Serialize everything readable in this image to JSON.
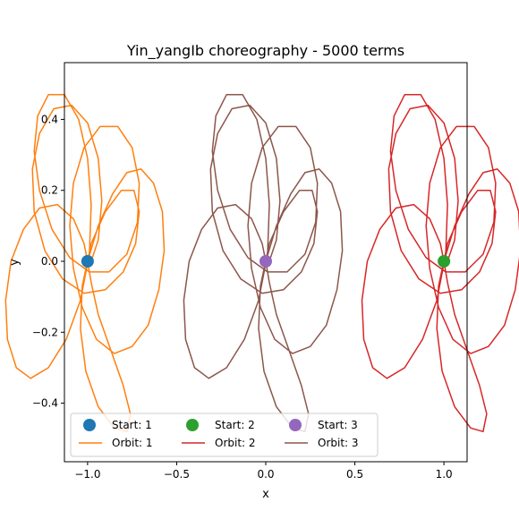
{
  "chart_data": {
    "type": "line",
    "title": "Yin_yangIb choreography - 5000 terms",
    "xlabel": "x",
    "ylabel": "y",
    "xlim": [
      -1.13,
      1.13
    ],
    "ylim": [
      -0.565,
      0.56
    ],
    "xticks": [
      -1.0,
      -0.5,
      0.0,
      0.5,
      1.0
    ],
    "xtick_labels": [
      "−1.0",
      "−0.5",
      "0.0",
      "0.5",
      "1.0"
    ],
    "yticks": [
      -0.4,
      -0.2,
      0.0,
      0.2,
      0.4
    ],
    "ytick_labels": [
      "−0.4",
      "−0.2",
      "0.0",
      "0.2",
      "0.4"
    ],
    "grid": false,
    "legend_placement": "lower-center",
    "legend_columns": 3,
    "starts": [
      {
        "name": "Start: 1",
        "x": -1.0,
        "y": 0.0,
        "color": "#1f77b4"
      },
      {
        "name": "Start: 2",
        "x": 1.0,
        "y": 0.0,
        "color": "#2ca02c"
      },
      {
        "name": "Start: 3",
        "x": 0.0,
        "y": 0.0,
        "color": "#9467bd"
      }
    ],
    "orbits": [
      {
        "name": "Orbit: 1",
        "color": "#ff7f0e",
        "offset_x": -1.0
      },
      {
        "name": "Orbit: 2",
        "color": "#d62728",
        "offset_x": 1.0
      },
      {
        "name": "Orbit: 3",
        "color": "#8c564b",
        "offset_x": 0.0
      }
    ],
    "curve_points": [
      [
        0.0,
        0.0
      ],
      [
        0.06,
        0.1
      ],
      [
        0.14,
        0.19
      ],
      [
        0.22,
        0.25
      ],
      [
        0.3,
        0.26
      ],
      [
        0.37,
        0.22
      ],
      [
        0.42,
        0.14
      ],
      [
        0.43,
        0.03
      ],
      [
        0.4,
        -0.08
      ],
      [
        0.34,
        -0.18
      ],
      [
        0.25,
        -0.24
      ],
      [
        0.15,
        -0.26
      ],
      [
        0.05,
        -0.22
      ],
      [
        -0.03,
        -0.13
      ],
      [
        -0.08,
        -0.02
      ],
      [
        -0.1,
        0.1
      ],
      [
        -0.08,
        0.22
      ],
      [
        -0.02,
        0.32
      ],
      [
        0.07,
        0.38
      ],
      [
        0.17,
        0.38
      ],
      [
        0.25,
        0.32
      ],
      [
        0.29,
        0.22
      ],
      [
        0.28,
        0.11
      ],
      [
        0.22,
        0.02
      ],
      [
        0.12,
        -0.03
      ],
      [
        0.01,
        -0.03
      ],
      [
        -0.1,
        0.01
      ],
      [
        -0.2,
        0.09
      ],
      [
        -0.27,
        0.2
      ],
      [
        -0.3,
        0.31
      ],
      [
        -0.28,
        0.41
      ],
      [
        -0.22,
        0.47
      ],
      [
        -0.13,
        0.47
      ],
      [
        -0.05,
        0.4
      ],
      [
        0.0,
        0.29
      ],
      [
        0.02,
        0.16
      ],
      [
        0.01,
        0.02
      ],
      [
        -0.04,
        -0.11
      ],
      [
        -0.12,
        -0.22
      ],
      [
        -0.22,
        -0.3
      ],
      [
        -0.32,
        -0.33
      ],
      [
        -0.4,
        -0.3
      ],
      [
        -0.45,
        -0.22
      ],
      [
        -0.46,
        -0.11
      ],
      [
        -0.43,
        0.0
      ],
      [
        -0.36,
        0.09
      ],
      [
        -0.27,
        0.15
      ],
      [
        -0.17,
        0.16
      ],
      [
        -0.08,
        0.12
      ],
      [
        -0.02,
        0.05
      ],
      [
        0.0,
        0.0
      ],
      [
        0.02,
        -0.06
      ],
      [
        0.06,
        -0.15
      ],
      [
        0.13,
        -0.25
      ],
      [
        0.2,
        -0.35
      ],
      [
        0.24,
        -0.43
      ],
      [
        0.22,
        -0.48
      ],
      [
        0.15,
        -0.47
      ],
      [
        0.06,
        -0.41
      ],
      [
        -0.01,
        -0.31
      ],
      [
        -0.04,
        -0.19
      ],
      [
        -0.03,
        -0.07
      ],
      [
        0.02,
        0.05
      ],
      [
        0.1,
        0.14
      ],
      [
        0.19,
        0.2
      ],
      [
        0.26,
        0.2
      ],
      [
        0.29,
        0.14
      ],
      [
        0.27,
        0.05
      ],
      [
        0.2,
        -0.03
      ],
      [
        0.1,
        -0.08
      ],
      [
        -0.02,
        -0.09
      ],
      [
        -0.14,
        -0.05
      ],
      [
        -0.24,
        0.03
      ],
      [
        -0.3,
        0.14
      ],
      [
        -0.31,
        0.26
      ],
      [
        -0.27,
        0.36
      ],
      [
        -0.19,
        0.43
      ],
      [
        -0.09,
        0.44
      ],
      [
        0.0,
        0.39
      ],
      [
        0.06,
        0.29
      ],
      [
        0.08,
        0.17
      ],
      [
        0.06,
        0.06
      ],
      [
        0.02,
        0.0
      ]
    ]
  }
}
